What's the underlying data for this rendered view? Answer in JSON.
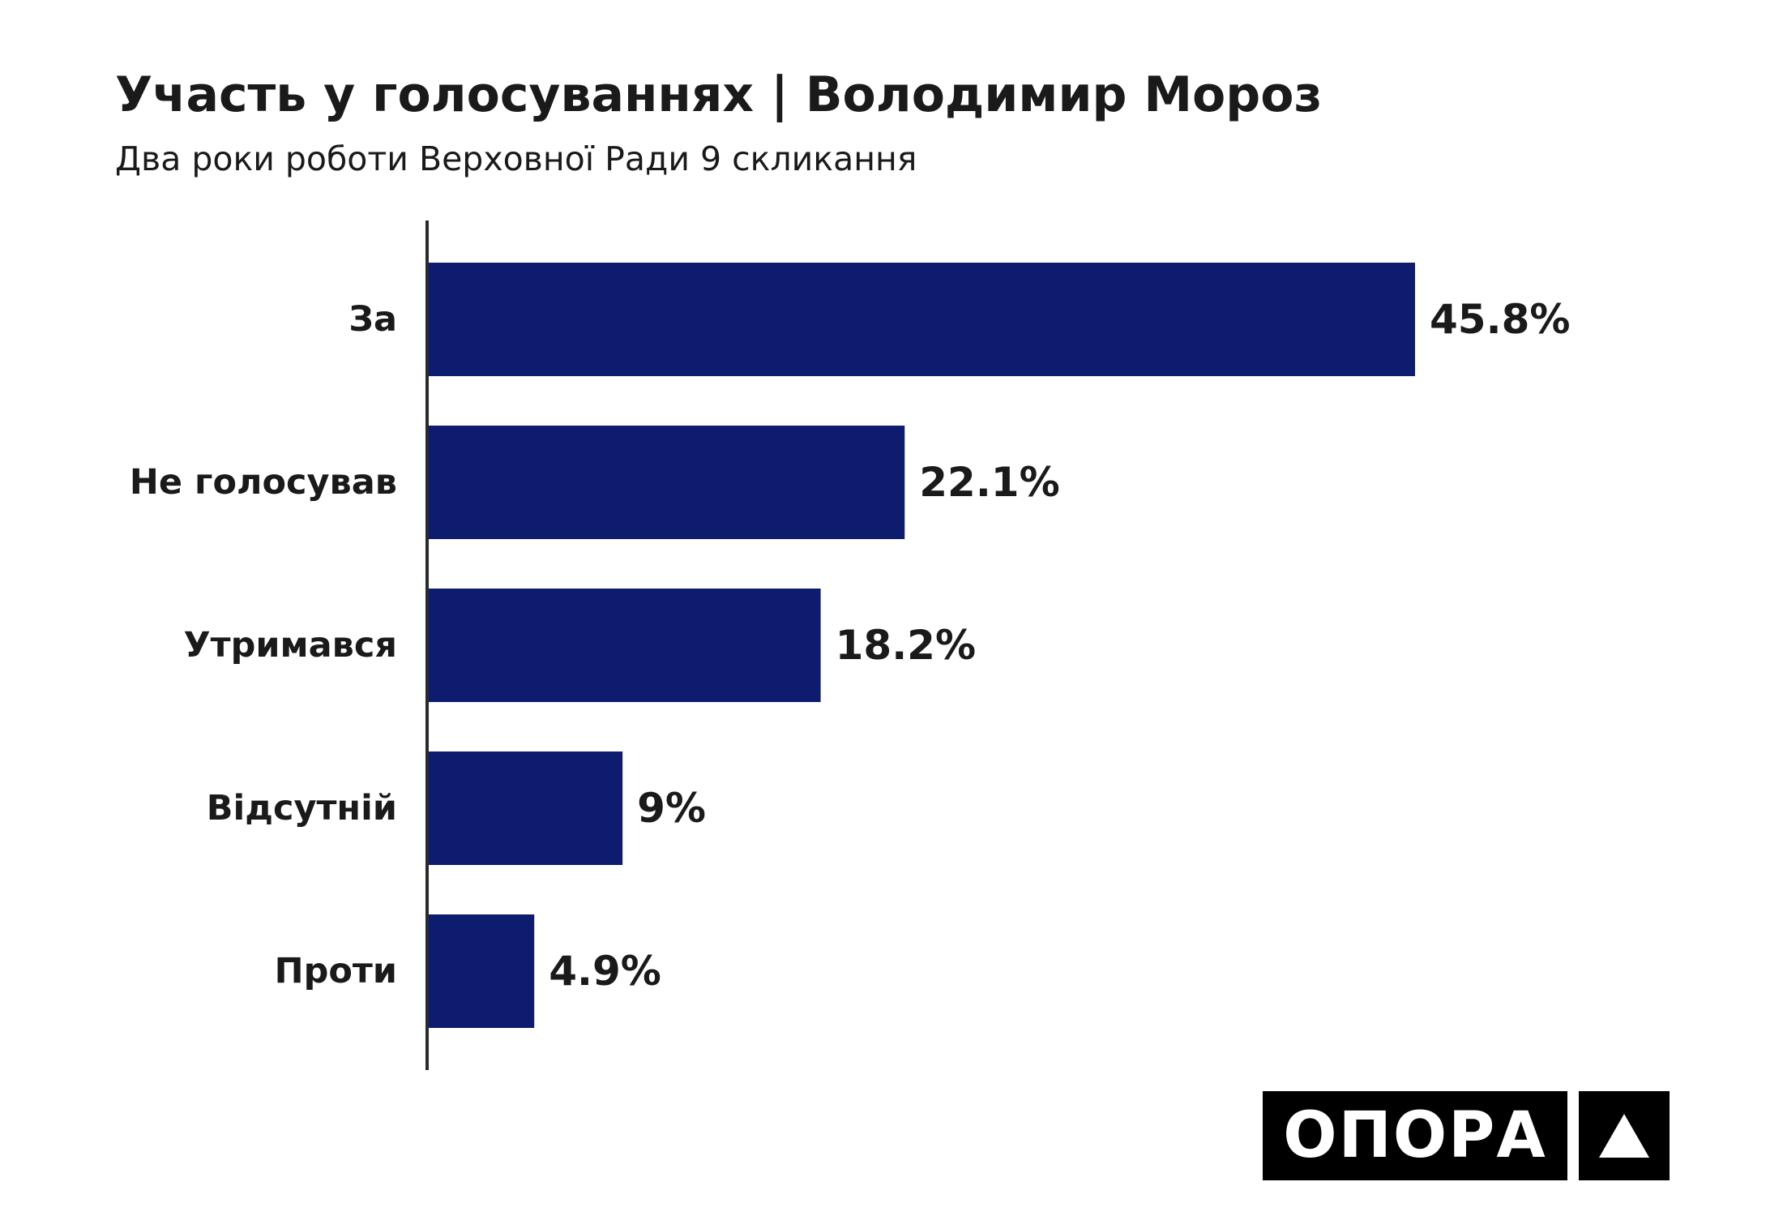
{
  "header": {
    "title": "Участь у голосуваннях | Володимир Мороз",
    "subtitle": "Два роки роботи Верховної Ради 9 скликання"
  },
  "chart_data": {
    "type": "bar",
    "orientation": "horizontal",
    "title": "Участь у голосуваннях | Володимир Мороз",
    "subtitle": "Два роки роботи Верховної Ради 9 скликання",
    "categories": [
      "За",
      "Не голосував",
      "Утримався",
      "Відсутній",
      "Проти"
    ],
    "values": [
      45.8,
      22.1,
      18.2,
      9,
      4.9
    ],
    "value_labels": [
      "45.8%",
      "22.1%",
      "18.2%",
      "9%",
      "4.9%"
    ],
    "unit": "%",
    "xlabel": "",
    "ylabel": "",
    "xlim": [
      0,
      45.8
    ],
    "grid": false,
    "bar_color": "#0e1c6f"
  },
  "logo": {
    "text": "ОПОРА",
    "icon": "triangle-icon"
  }
}
